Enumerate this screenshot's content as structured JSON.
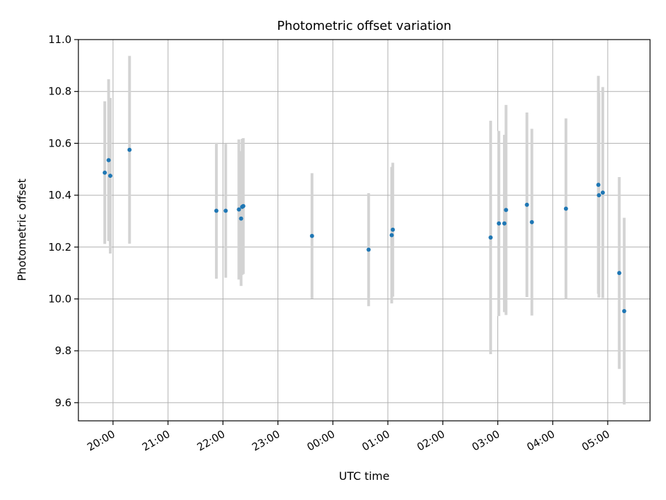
{
  "chart_data": {
    "type": "scatter",
    "title": "Photometric offset variation",
    "xlabel": "UTC time",
    "ylabel": "Photometric offset",
    "x_ticks": [
      "20:00",
      "21:00",
      "22:00",
      "23:00",
      "00:00",
      "01:00",
      "02:00",
      "03:00",
      "04:00",
      "05:00"
    ],
    "x_tick_hours": [
      20,
      21,
      22,
      23,
      24,
      25,
      26,
      27,
      28,
      29
    ],
    "xlim_hours": [
      19.37,
      29.77
    ],
    "y_ticks": [
      "9.6",
      "9.8",
      "10.0",
      "10.2",
      "10.4",
      "10.6",
      "10.8",
      "11.0"
    ],
    "ylim": [
      9.53,
      11.0
    ],
    "grid": true,
    "colors": {
      "point": "#1f77b4",
      "errorbar": "#d3d3d3",
      "grid": "#b0b0b0",
      "axes": "#000000"
    },
    "series": [
      {
        "points": [
          {
            "t": "19:51",
            "h": 19.85,
            "y": 10.487,
            "err": 0.275
          },
          {
            "t": "19:55",
            "h": 19.92,
            "y": 10.535,
            "err": 0.312
          },
          {
            "t": "19:57",
            "h": 19.95,
            "y": 10.475,
            "err": 0.3
          },
          {
            "t": "20:18",
            "h": 20.3,
            "y": 10.575,
            "err": 0.362
          },
          {
            "t": "21:53",
            "h": 21.88,
            "y": 10.34,
            "err": 0.262
          },
          {
            "t": "22:03",
            "h": 22.05,
            "y": 10.34,
            "err": 0.258
          },
          {
            "t": "22:17",
            "h": 22.29,
            "y": 10.345,
            "err": 0.27
          },
          {
            "t": "22:20",
            "h": 22.33,
            "y": 10.31,
            "err": 0.26
          },
          {
            "t": "22:21",
            "h": 22.35,
            "y": 10.355,
            "err": 0.262
          },
          {
            "t": "22:22",
            "h": 22.37,
            "y": 10.358,
            "err": 0.262
          },
          {
            "t": "23:37",
            "h": 23.62,
            "y": 10.243,
            "err": 0.242
          },
          {
            "t": "00:39",
            "h": 24.65,
            "y": 10.19,
            "err": 0.218
          },
          {
            "t": "01:04",
            "h": 25.07,
            "y": 10.246,
            "err": 0.263
          },
          {
            "t": "01:05",
            "h": 25.09,
            "y": 10.267,
            "err": 0.258
          },
          {
            "t": "02:52",
            "h": 26.87,
            "y": 10.237,
            "err": 0.45
          },
          {
            "t": "03:01",
            "h": 27.02,
            "y": 10.291,
            "err": 0.357
          },
          {
            "t": "03:07",
            "h": 27.12,
            "y": 10.291,
            "err": 0.342
          },
          {
            "t": "03:09",
            "h": 27.15,
            "y": 10.343,
            "err": 0.405
          },
          {
            "t": "03:32",
            "h": 27.53,
            "y": 10.363,
            "err": 0.356
          },
          {
            "t": "03:37",
            "h": 27.62,
            "y": 10.296,
            "err": 0.36
          },
          {
            "t": "04:14",
            "h": 28.24,
            "y": 10.348,
            "err": 0.348
          },
          {
            "t": "04:50",
            "h": 28.83,
            "y": 10.44,
            "err": 0.42
          },
          {
            "t": "04:50",
            "h": 28.84,
            "y": 10.4,
            "err": 0.395
          },
          {
            "t": "04:54",
            "h": 28.91,
            "y": 10.41,
            "err": 0.407
          },
          {
            "t": "05:12",
            "h": 29.21,
            "y": 10.1,
            "err": 0.37
          },
          {
            "t": "05:18",
            "h": 29.3,
            "y": 9.953,
            "err": 0.36
          }
        ]
      }
    ]
  }
}
